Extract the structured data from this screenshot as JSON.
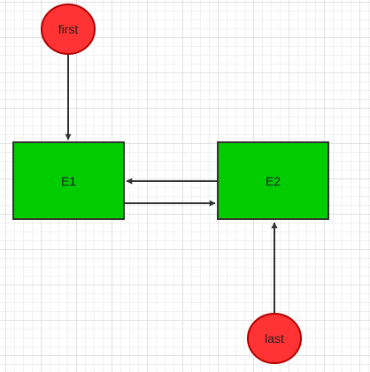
{
  "diagram": {
    "nodes": [
      {
        "id": "first",
        "shape": "ellipse",
        "label": "first",
        "fill": "#ff3333",
        "stroke": "#b20000"
      },
      {
        "id": "e1",
        "shape": "rect",
        "label": "E1",
        "fill": "#00cc00",
        "stroke": "#333333"
      },
      {
        "id": "e2",
        "shape": "rect",
        "label": "E2",
        "fill": "#00cc00",
        "stroke": "#333333"
      },
      {
        "id": "last",
        "shape": "ellipse",
        "label": "last",
        "fill": "#ff3333",
        "stroke": "#b20000"
      }
    ],
    "edges": [
      {
        "from": "first",
        "to": "e1"
      },
      {
        "from": "e2",
        "to": "e1"
      },
      {
        "from": "e1",
        "to": "e2"
      },
      {
        "from": "last",
        "to": "e2"
      }
    ],
    "colors": {
      "edge": "#333333",
      "grid_major": "#e2e2e2",
      "grid_minor": "#f1f1f1"
    }
  }
}
